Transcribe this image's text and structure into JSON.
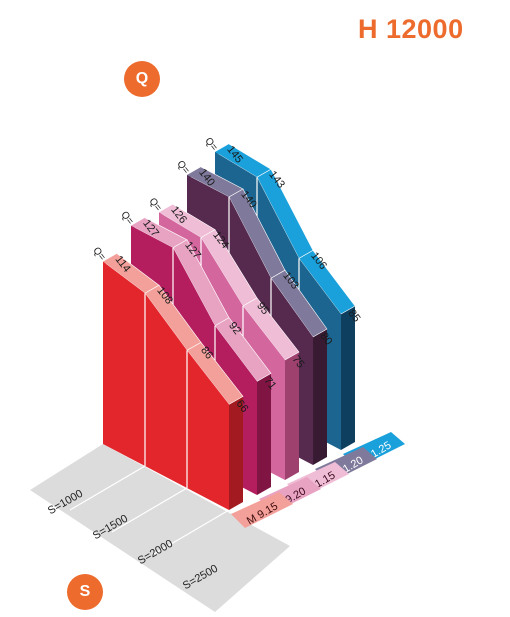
{
  "title": "H 12000",
  "badges": {
    "q": "Q",
    "s": "S"
  },
  "chart_data": {
    "type": "3d-ribbon",
    "title": "H 12000",
    "x_axis_name": "S",
    "z_axis_name": "Q",
    "x": [
      1000,
      1500,
      2000,
      2500
    ],
    "x_labels": [
      "S=1000",
      "S=1500",
      "S=2000",
      "S=2500"
    ],
    "q_prefix": "Q=",
    "series": [
      {
        "name": "M 9.15",
        "values": [
          114,
          108,
          86,
          66
        ],
        "color_front": "#e3262c",
        "color_top": "#f4a09a",
        "color_side": "#a31b20",
        "color_tag": "#f4a09a",
        "tag_text": "#3a0a0a"
      },
      {
        "name": "M 9.20",
        "values": [
          127,
          127,
          92,
          71
        ],
        "color_front": "#b41e5e",
        "color_top": "#e8a3c2",
        "color_side": "#801443",
        "color_tag": "#e8a3c2",
        "tag_text": "#3a0a1e"
      },
      {
        "name": "P 11.15",
        "values": [
          126,
          124,
          95,
          75
        ],
        "color_front": "#d4669e",
        "color_top": "#f0bdd6",
        "color_side": "#9e416f",
        "color_tag": "#f0bdd6",
        "tag_text": "#3a0a1e"
      },
      {
        "name": "P 11.20",
        "values": [
          140,
          140,
          103,
          80
        ],
        "color_front": "#56294f",
        "color_top": "#7f7a9c",
        "color_side": "#381a33",
        "color_tag": "#7f7a9c",
        "tag_text": "#ffffff"
      },
      {
        "name": "P 11.25",
        "values": [
          145,
          143,
          106,
          85
        ],
        "color_front": "#1b6590",
        "color_top": "#1aa0da",
        "color_side": "#0f3f5e",
        "color_tag": "#1aa0da",
        "tag_text": "#ffffff"
      }
    ]
  }
}
